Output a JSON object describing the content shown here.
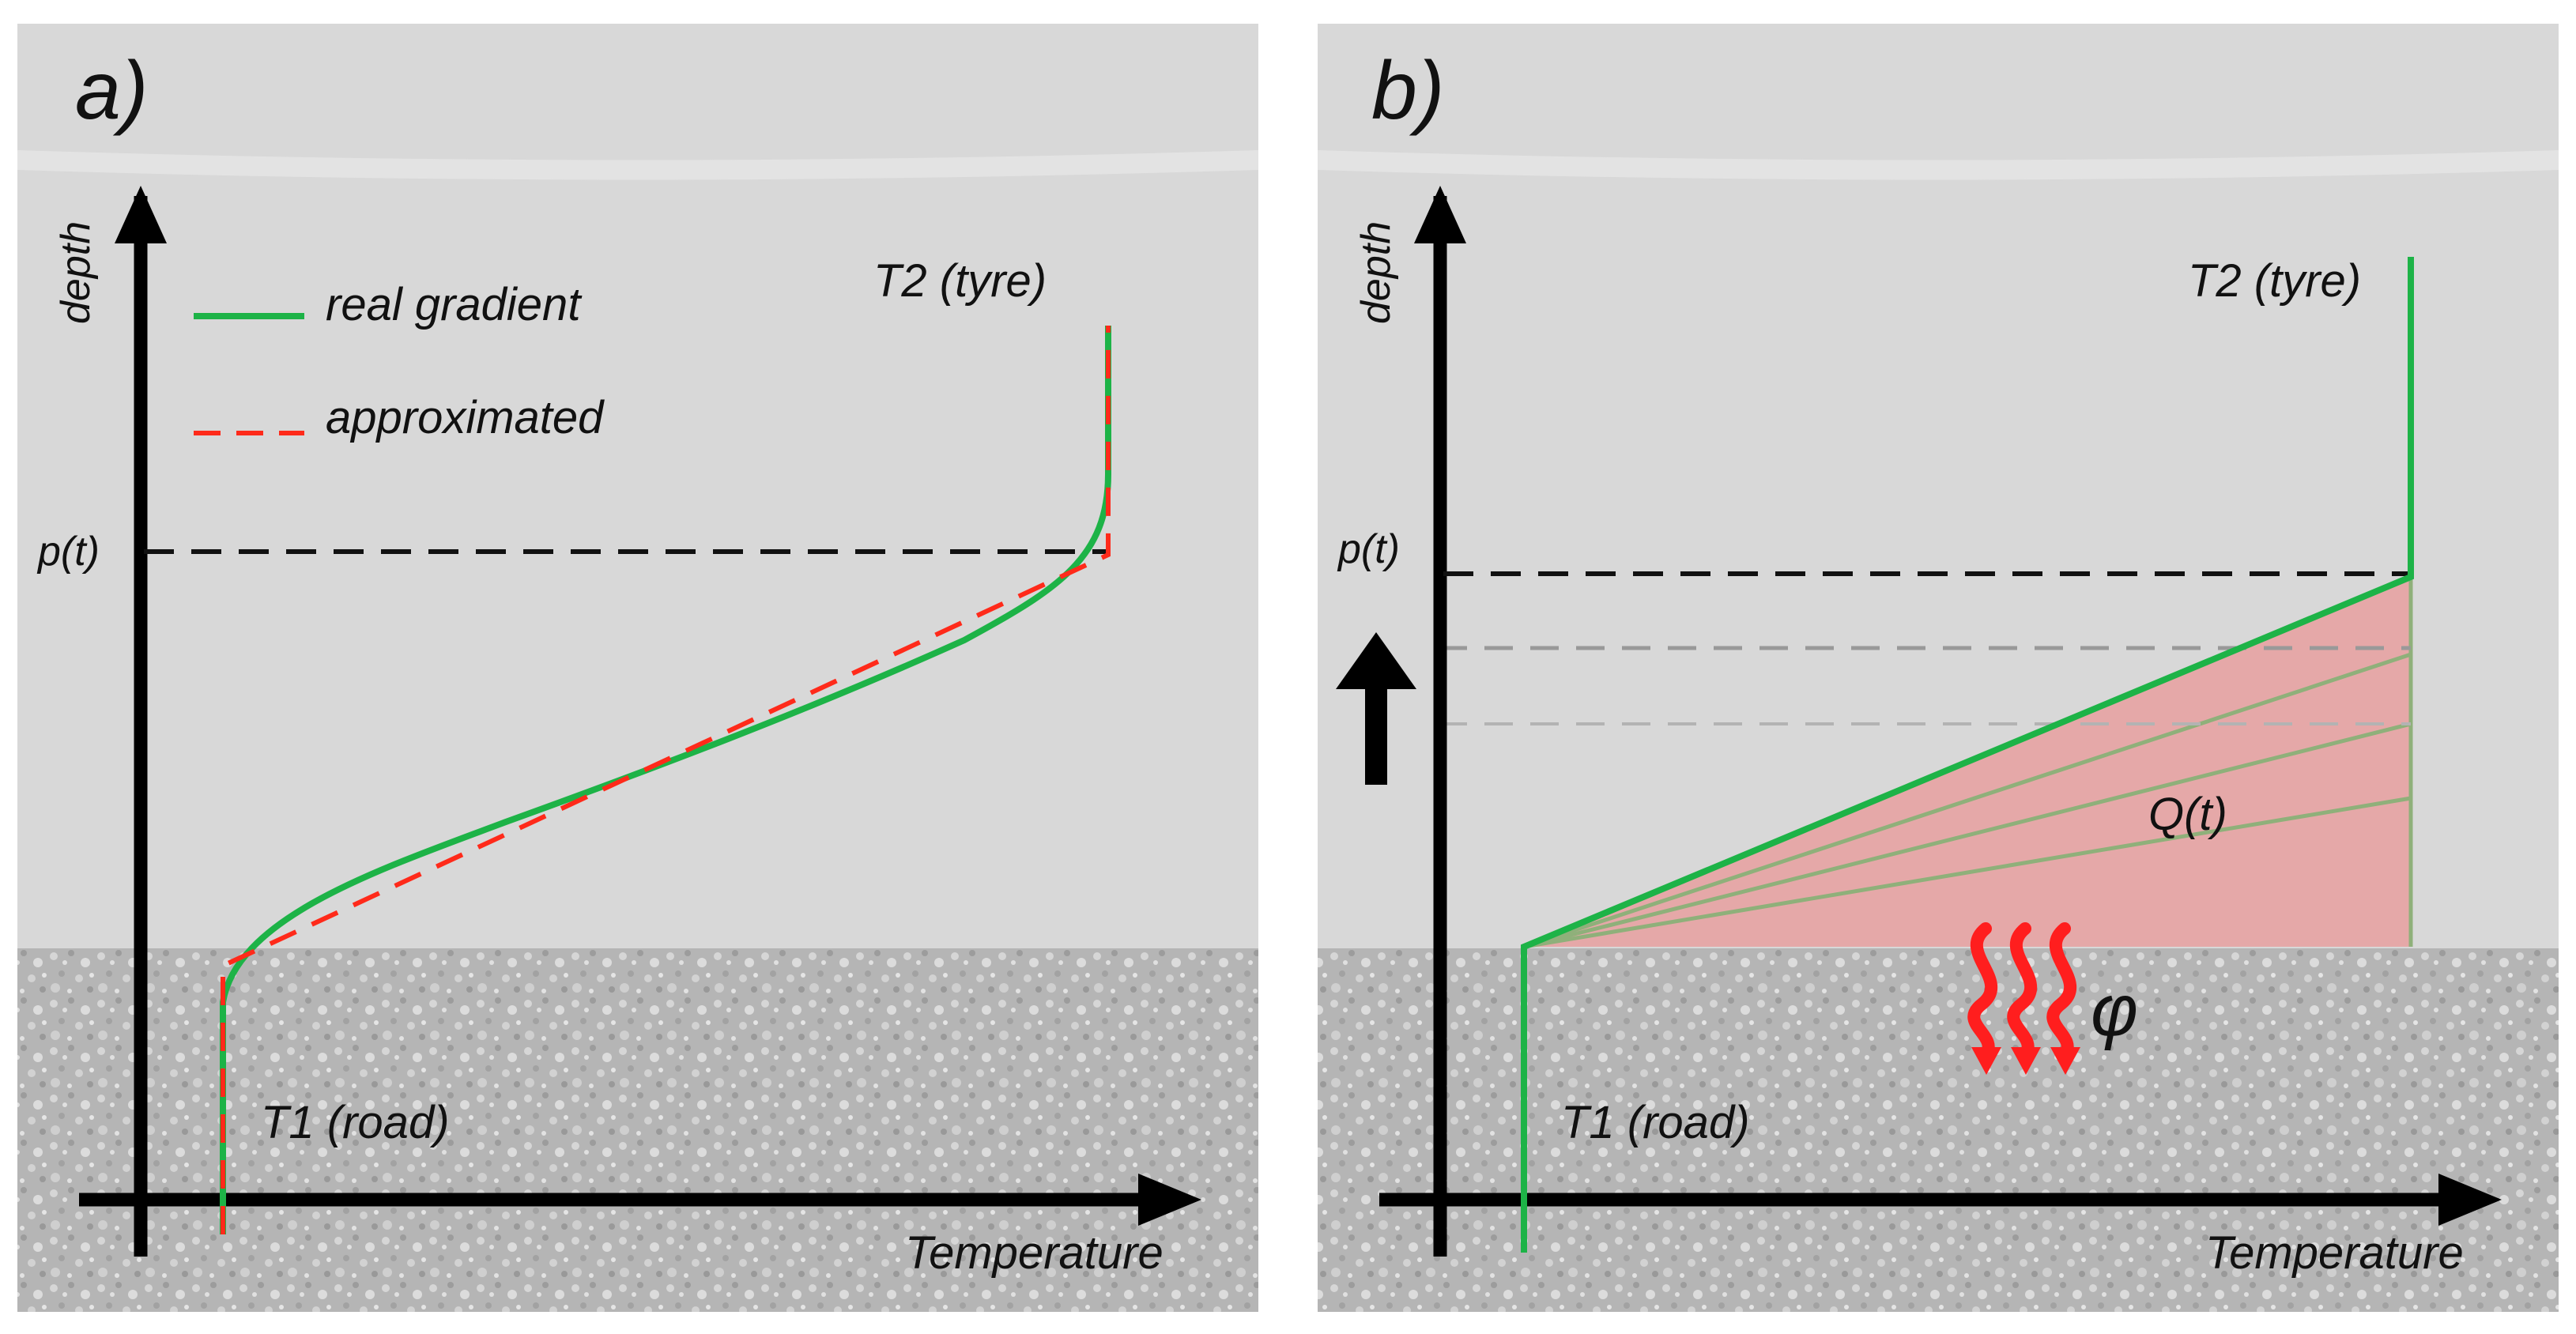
{
  "colors": {
    "background": "#ffffff",
    "tyre_region": "#d8d8d8",
    "road_region": "#b9b9b9",
    "axis": "#000000",
    "real_gradient": "#1db347",
    "approximated": "#ff2a1a",
    "p_line": "#111111",
    "heat_area": "#e8a0a0",
    "heat_arrows": "#ff1e1e"
  },
  "panel_a": {
    "tag": "a)",
    "y_axis_label": "depth",
    "x_axis_label": "Temperature",
    "top_label": "T2 (tyre)",
    "bottom_label": "T1 (road)",
    "p_label": "p(t)",
    "legend": {
      "real": "real gradient",
      "approx": "approximated"
    }
  },
  "panel_b": {
    "tag": "b)",
    "y_axis_label": "depth",
    "x_axis_label": "Temperature",
    "top_label": "T2 (tyre)",
    "bottom_label": "T1 (road)",
    "p_label": "p(t)",
    "area_label": "Q(t)",
    "flux_symbol": "φ",
    "front_direction_icon": "up-arrow-icon"
  }
}
